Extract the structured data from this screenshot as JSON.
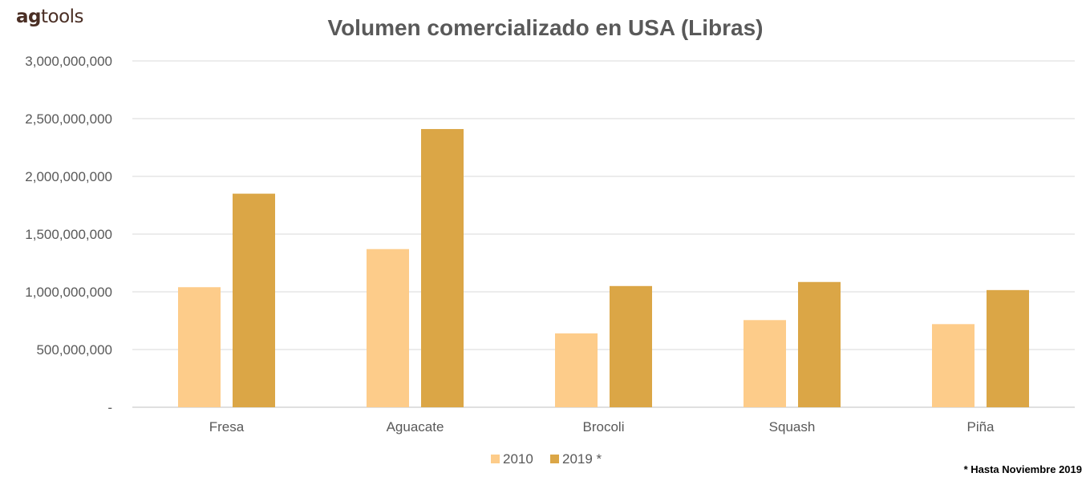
{
  "logo": {
    "part1": "ag",
    "part2": "tools"
  },
  "footnote": "* Hasta Noviembre 2019",
  "colors": {
    "series_2010": "#fdcc8a",
    "series_2019": "#dba646",
    "text": "#595959",
    "title": "#595959",
    "grid": "#d9d9d9",
    "axis": "#bfbfbf"
  },
  "chart_data": {
    "type": "bar",
    "title": "Volumen comercializado en USA (Libras)",
    "xlabel": "",
    "ylabel": "",
    "categories": [
      "Fresa",
      "Aguacate",
      "Brocoli",
      "Squash",
      "Piña"
    ],
    "series": [
      {
        "name": "2010",
        "values": [
          1040000000,
          1370000000,
          640000000,
          755000000,
          720000000
        ]
      },
      {
        "name": "2019 *",
        "values": [
          1850000000,
          2410000000,
          1050000000,
          1085000000,
          1015000000
        ]
      }
    ],
    "ylim": [
      0,
      3000000000
    ],
    "yticks": [
      0,
      500000000,
      1000000000,
      1500000000,
      2000000000,
      2500000000,
      3000000000
    ],
    "ytick_labels": [
      "-",
      "500,000,000",
      "1,000,000,000",
      "1,500,000,000",
      "2,000,000,000",
      "2,500,000,000",
      "3,000,000,000"
    ],
    "grid": true,
    "legend_position": "bottom"
  }
}
